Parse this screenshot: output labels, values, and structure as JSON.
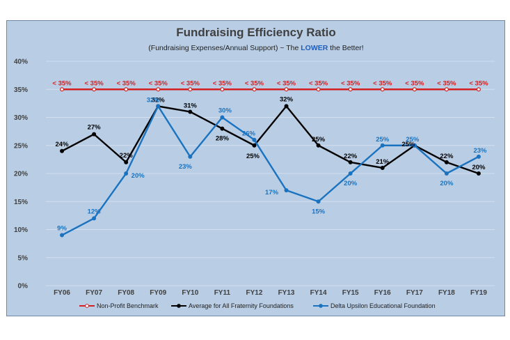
{
  "chart_data": {
    "type": "line",
    "title": "Fundraising Efficiency Ratio",
    "subtitle_prefix": "(Fundraising Expenses/Annual Support) ~ The ",
    "subtitle_emphasis": "LOWER",
    "subtitle_suffix": " the Better!",
    "categories": [
      "FY06",
      "FY07",
      "FY08",
      "FY09",
      "FY10",
      "FY11",
      "FY12",
      "FY13",
      "FY14",
      "FY15",
      "FY16",
      "FY17",
      "FY18",
      "FY19"
    ],
    "ylim": [
      0,
      40
    ],
    "yticks": [
      0,
      5,
      10,
      15,
      20,
      25,
      30,
      35,
      40
    ],
    "ytick_labels": [
      "0%",
      "5%",
      "10%",
      "15%",
      "20%",
      "25%",
      "30%",
      "35%",
      "40%"
    ],
    "grid": true,
    "legend_position": "bottom",
    "series": [
      {
        "name": "Non-Profit Benchmark",
        "color": "#d42020",
        "marker": "hollow-circle",
        "values": [
          35,
          35,
          35,
          35,
          35,
          35,
          35,
          35,
          35,
          35,
          35,
          35,
          35,
          35
        ],
        "labels": [
          "< 35%",
          "< 35%",
          "< 35%",
          "< 35%",
          "< 35%",
          "< 35%",
          "< 35%",
          "< 35%",
          "< 35%",
          "< 35%",
          "< 35%",
          "< 35%",
          "< 35%",
          "< 35%"
        ]
      },
      {
        "name": "Average for All Fraternity Foundations",
        "color": "#000000",
        "marker": "filled-circle",
        "values": [
          24,
          27,
          22,
          32,
          31,
          28,
          25,
          32,
          25,
          22,
          21,
          25,
          22,
          20
        ],
        "labels": [
          "24%",
          "27%",
          "22%",
          "32%",
          "31%",
          "28%",
          "25%",
          "32%",
          "25%",
          "22%",
          "21%",
          "25%",
          "22%",
          "20%"
        ]
      },
      {
        "name": "Delta Upsilon Educational Foundation",
        "color": "#1a73c0",
        "marker": "filled-circle",
        "values": [
          9,
          12,
          20,
          32,
          23,
          30,
          26,
          17,
          15,
          20,
          25,
          25,
          20,
          23
        ],
        "labels": [
          "9%",
          "12%",
          "20%",
          "32%",
          "23%",
          "30%",
          "26%",
          "17%",
          "15%",
          "20%",
          "25%",
          "25%",
          "20%",
          "23%"
        ]
      }
    ]
  }
}
